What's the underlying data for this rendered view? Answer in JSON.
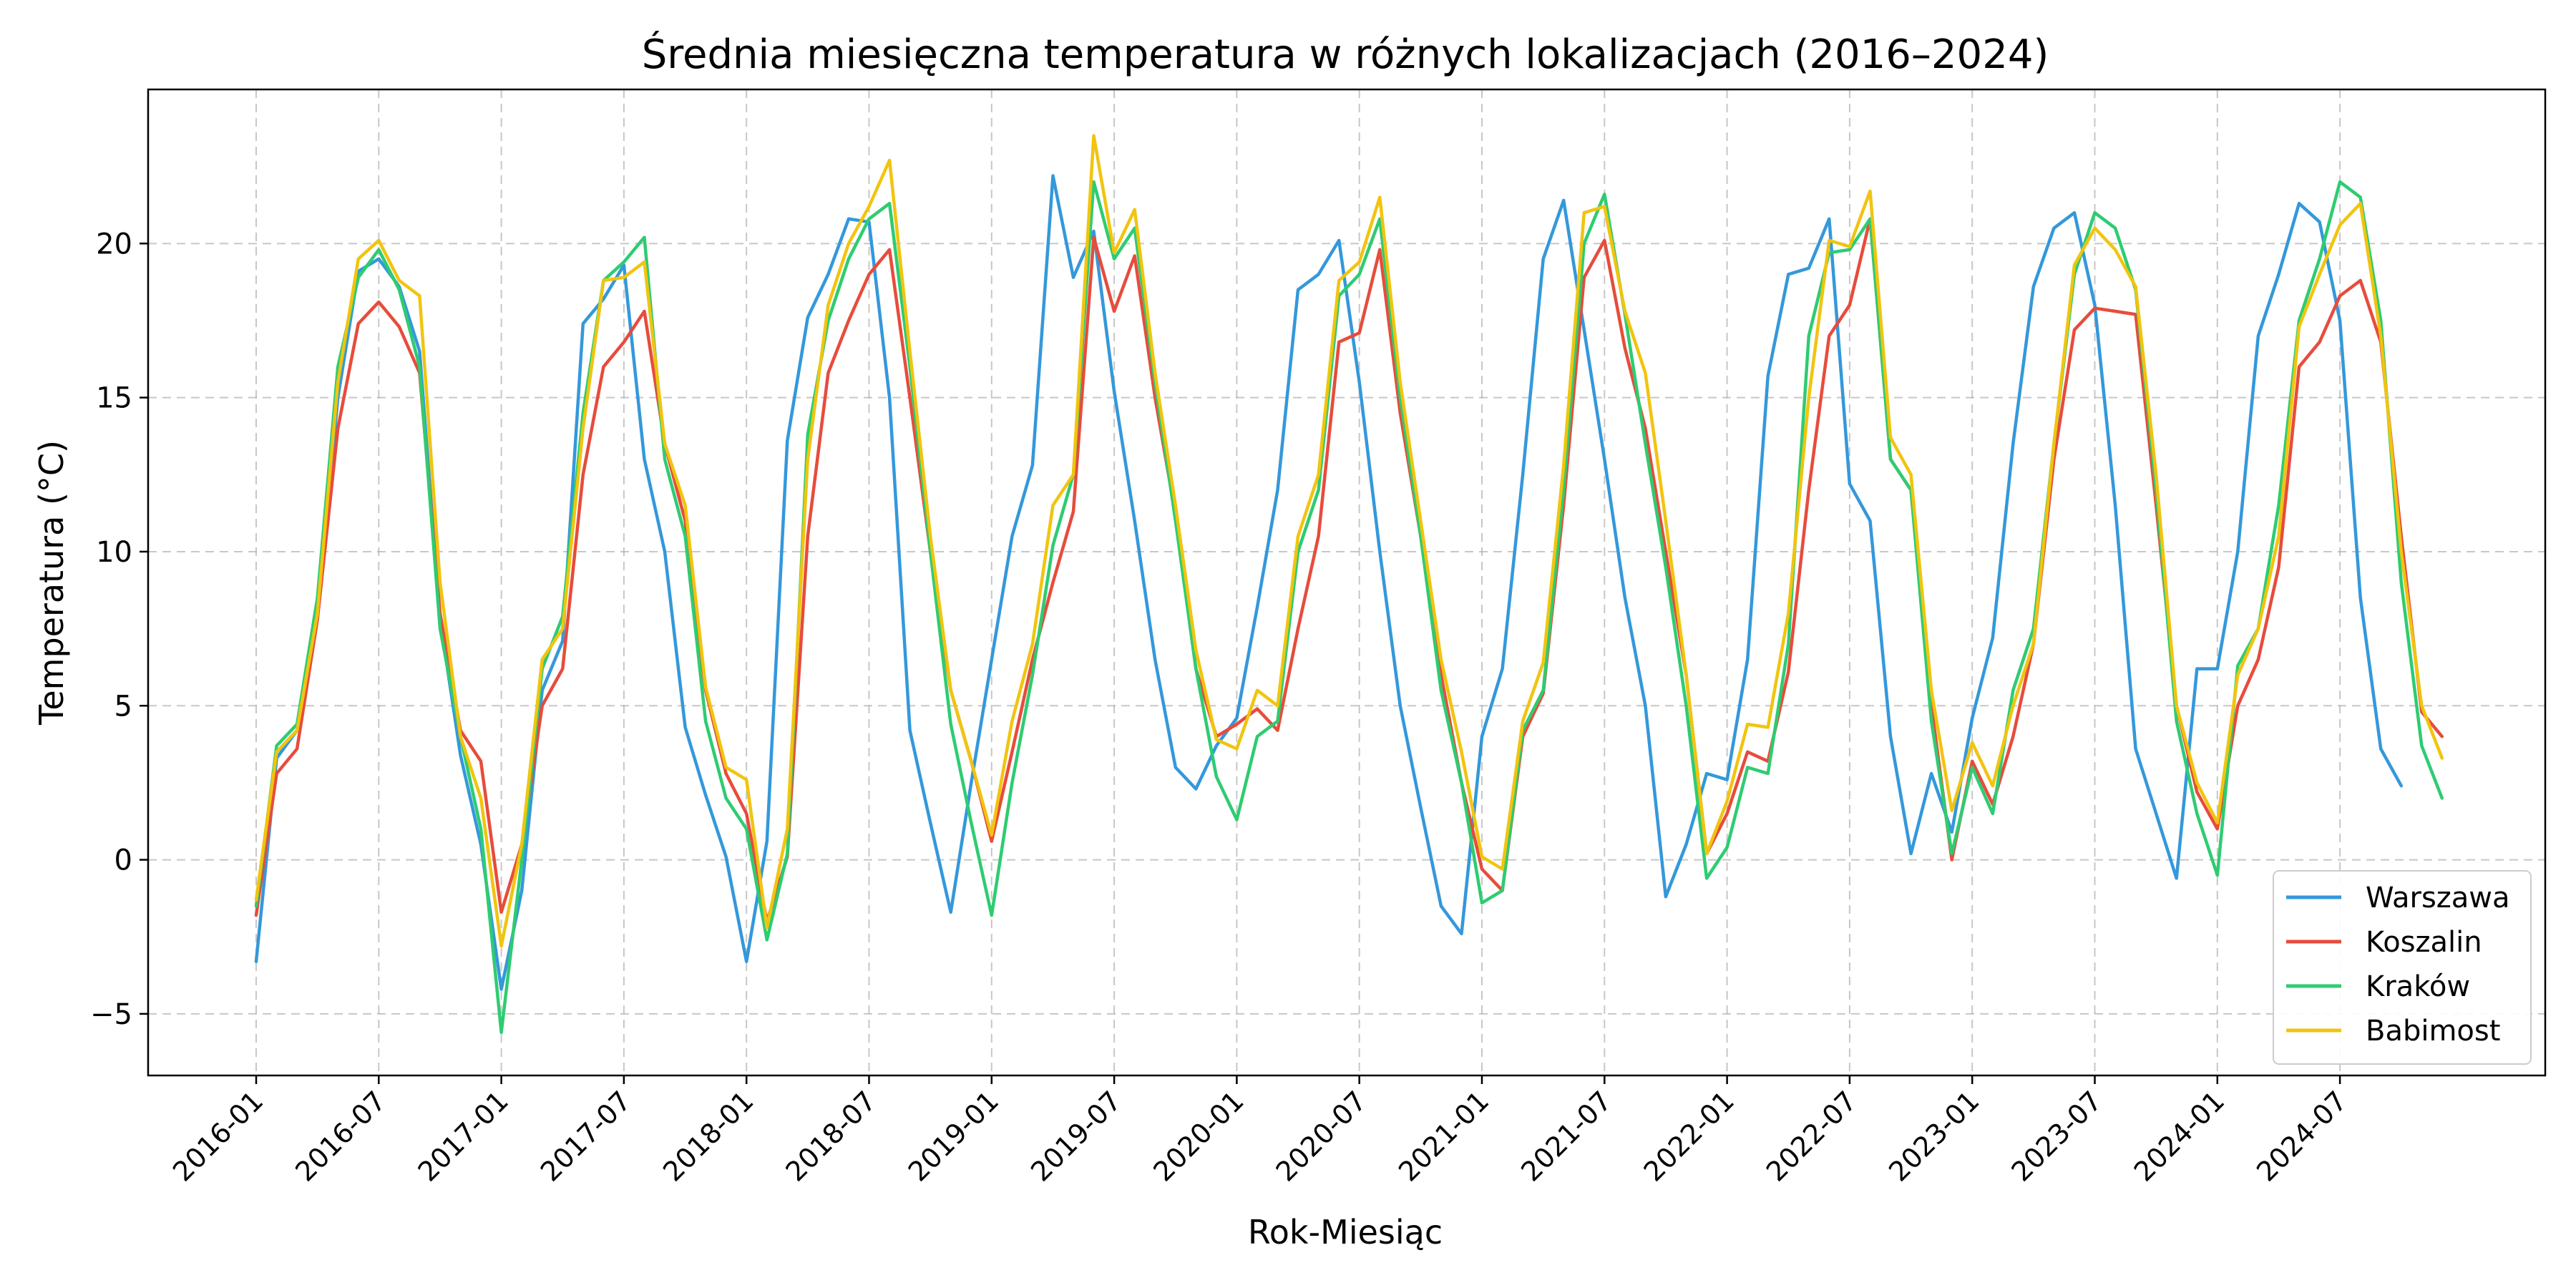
{
  "chart_data": {
    "type": "line",
    "title": "Średnia miesięczna temperatura w różnych lokalizacjach (2016–2024)",
    "xlabel": "Rok-Miesiąc",
    "ylabel": "Temperatura (°C)",
    "ylim": [
      -7.0,
      25.0
    ],
    "yticks": [
      -5,
      0,
      5,
      10,
      15,
      20
    ],
    "yticklabels": [
      "−5",
      "0",
      "5",
      "10",
      "15",
      "20"
    ],
    "xticks": [
      "2016-01",
      "2016-07",
      "2017-01",
      "2017-07",
      "2018-01",
      "2018-07",
      "2019-01",
      "2019-07",
      "2020-01",
      "2020-07",
      "2021-01",
      "2021-07",
      "2022-01",
      "2022-07",
      "2023-01",
      "2023-07",
      "2024-01",
      "2024-07"
    ],
    "grid": true,
    "legend_position": "lower right",
    "x_start": "2016-01",
    "x_end": "2024-12",
    "series": [
      {
        "name": "Warszawa",
        "color": "#3498db",
        "values": [
          -3.3,
          3.3,
          4.2,
          7.9,
          15.0,
          19.1,
          19.5,
          18.6,
          16.5,
          7.8,
          3.4,
          0.5,
          -4.2,
          -1.0,
          5.5,
          7.1,
          17.4,
          18.2,
          19.3,
          13.0,
          10.0,
          4.3,
          2.1,
          0.1,
          -3.3,
          0.6,
          13.6,
          17.6,
          19.0,
          20.8,
          20.7,
          15.0,
          4.2,
          1.2,
          -1.7,
          2.5,
          6.5,
          10.5,
          12.8,
          22.2,
          18.9,
          20.4,
          15.2,
          11.0,
          6.5,
          3.0,
          2.3,
          3.7,
          4.6,
          8.2,
          12.0,
          18.5,
          19.0,
          20.1,
          15.5,
          10.0,
          5.0,
          1.7,
          -1.5,
          -2.4,
          4.0,
          6.2,
          12.5,
          19.5,
          21.4,
          17.2,
          13.0,
          8.5,
          5.0,
          -1.2,
          0.5,
          2.8,
          2.6,
          6.5,
          15.7,
          19.0,
          19.2,
          20.8,
          12.2,
          11.0,
          4.0,
          0.2,
          2.8,
          0.9,
          4.6,
          7.2,
          13.5,
          18.6,
          20.5,
          21.0,
          18.0,
          11.5,
          3.6,
          1.5,
          -0.6,
          6.2,
          6.2,
          10.0,
          17.0,
          19.0,
          21.3,
          20.7,
          17.5,
          8.5,
          3.6,
          2.4
        ]
      },
      {
        "name": "Koszalin",
        "color": "#e74c3c",
        "values": [
          -1.8,
          2.8,
          3.6,
          7.8,
          14.0,
          17.4,
          18.1,
          17.3,
          15.8,
          8.0,
          4.2,
          3.2,
          -1.7,
          0.5,
          5.0,
          6.2,
          12.5,
          16.0,
          16.8,
          17.8,
          13.5,
          11.0,
          5.5,
          2.8,
          1.5,
          -2.0,
          0.1,
          10.5,
          15.8,
          17.5,
          19.0,
          19.8,
          15.0,
          10.0,
          5.5,
          3.2,
          0.6,
          3.5,
          6.5,
          9.0,
          11.3,
          20.2,
          17.8,
          19.6,
          15.0,
          11.2,
          6.2,
          4.0,
          4.4,
          4.9,
          4.2,
          7.5,
          10.5,
          16.8,
          17.1,
          19.8,
          14.5,
          10.5,
          6.0,
          2.5,
          -0.3,
          -1.0,
          4.0,
          5.4,
          11.5,
          18.9,
          20.1,
          16.6,
          14.0,
          10.0,
          6.0,
          0.2,
          1.5,
          3.5,
          3.2,
          6.1,
          12.0,
          17.0,
          18.0,
          20.8,
          13.0,
          12.0,
          5.0,
          0.0,
          3.2,
          1.8,
          4.0,
          7.0,
          13.0,
          17.2,
          17.9,
          17.8,
          17.7,
          11.5,
          5.0,
          2.2,
          1.0,
          5.0,
          6.5,
          9.5,
          16.0,
          16.8,
          18.3,
          18.8,
          16.8,
          10.5,
          4.8,
          4.0
        ]
      },
      {
        "name": "Kraków",
        "color": "#2ecc71",
        "values": [
          -1.5,
          3.7,
          4.4,
          8.5,
          16.0,
          18.9,
          19.8,
          18.5,
          16.0,
          7.5,
          4.0,
          1.0,
          -5.6,
          0.0,
          6.2,
          7.9,
          14.5,
          18.8,
          19.4,
          20.2,
          13.0,
          10.5,
          4.5,
          2.0,
          1.0,
          -2.6,
          0.2,
          13.8,
          17.5,
          19.5,
          20.8,
          21.3,
          16.0,
          10.0,
          4.4,
          1.2,
          -1.8,
          2.5,
          6.0,
          10.2,
          12.5,
          22.0,
          19.5,
          20.5,
          15.5,
          11.0,
          6.2,
          2.7,
          1.3,
          4.0,
          4.5,
          10.0,
          12.0,
          18.3,
          19.0,
          20.8,
          15.0,
          10.5,
          5.5,
          2.5,
          -1.4,
          -1.0,
          4.2,
          5.5,
          12.0,
          20.0,
          21.6,
          17.7,
          13.5,
          9.5,
          5.0,
          -0.6,
          0.4,
          3.0,
          2.8,
          7.0,
          17.0,
          19.7,
          19.8,
          20.8,
          13.0,
          12.0,
          4.5,
          0.2,
          3.0,
          1.5,
          5.5,
          7.5,
          13.5,
          19.0,
          21.0,
          20.5,
          18.5,
          12.0,
          4.5,
          1.5,
          -0.5,
          6.3,
          7.5,
          11.5,
          17.5,
          19.5,
          22.0,
          21.5,
          17.5,
          9.0,
          3.7,
          2.0
        ]
      },
      {
        "name": "Babimost",
        "color": "#f1c40f",
        "values": [
          -1.3,
          3.5,
          4.2,
          8.0,
          15.5,
          19.5,
          20.1,
          18.8,
          18.3,
          9.0,
          4.0,
          2.0,
          -2.8,
          0.5,
          6.5,
          7.5,
          14.0,
          18.8,
          18.9,
          19.4,
          13.5,
          11.5,
          5.6,
          3.0,
          2.6,
          -2.2,
          1.0,
          13.0,
          18.0,
          20.0,
          21.2,
          22.7,
          16.5,
          10.5,
          5.5,
          3.2,
          0.8,
          4.5,
          7.0,
          11.5,
          12.5,
          23.5,
          19.7,
          21.1,
          15.8,
          11.5,
          6.8,
          3.9,
          3.6,
          5.5,
          5.0,
          10.5,
          12.5,
          18.8,
          19.4,
          21.5,
          15.5,
          11.0,
          6.5,
          3.5,
          0.1,
          -0.3,
          4.5,
          6.4,
          12.8,
          21.0,
          21.2,
          17.8,
          15.8,
          11.0,
          6.0,
          0.2,
          1.9,
          4.4,
          4.3,
          8.0,
          15.0,
          20.1,
          19.9,
          21.7,
          13.7,
          12.5,
          5.5,
          1.6,
          3.8,
          2.4,
          5.0,
          7.0,
          13.5,
          19.3,
          20.5,
          19.8,
          18.6,
          12.5,
          5.0,
          2.5,
          1.2,
          6.0,
          7.5,
          10.5,
          17.3,
          19.0,
          20.6,
          21.3,
          17.0,
          10.0,
          5.0,
          3.3
        ]
      }
    ]
  }
}
